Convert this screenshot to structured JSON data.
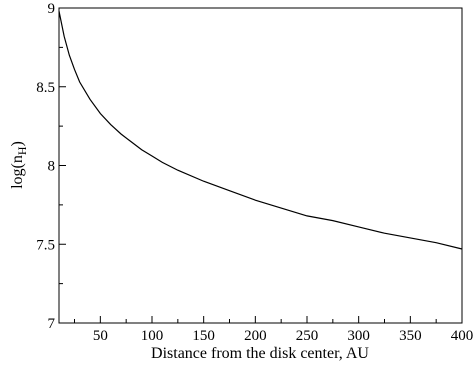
{
  "chart_data": {
    "type": "line",
    "title": "",
    "xlabel": "Distance from the disk center, AU",
    "ylabel_main": "log(n",
    "ylabel_sub": "H",
    "ylabel_close": ")",
    "xlim": [
      10,
      400
    ],
    "ylim": [
      7,
      9
    ],
    "grid": false,
    "x_ticks": [
      50,
      100,
      150,
      200,
      250,
      300,
      350,
      400
    ],
    "x_tick_labels": [
      "50",
      "100",
      "150",
      "200",
      "250",
      "300",
      "350",
      "400"
    ],
    "y_ticks": [
      7,
      7.5,
      8,
      8.5,
      9
    ],
    "y_tick_labels": [
      "7",
      "7.5",
      "8",
      "8.5",
      "9"
    ],
    "series": [
      {
        "x": [
          10,
          15,
          20,
          25,
          30,
          40,
          50,
          60,
          70,
          80,
          90,
          100,
          110,
          125,
          150,
          175,
          200,
          225,
          250,
          275,
          300,
          325,
          350,
          375,
          400
        ],
        "y": [
          8.98,
          8.82,
          8.7,
          8.61,
          8.53,
          8.42,
          8.33,
          8.26,
          8.2,
          8.15,
          8.1,
          8.06,
          8.02,
          7.97,
          7.9,
          7.84,
          7.78,
          7.73,
          7.68,
          7.65,
          7.61,
          7.57,
          7.54,
          7.51,
          7.47
        ]
      }
    ]
  }
}
